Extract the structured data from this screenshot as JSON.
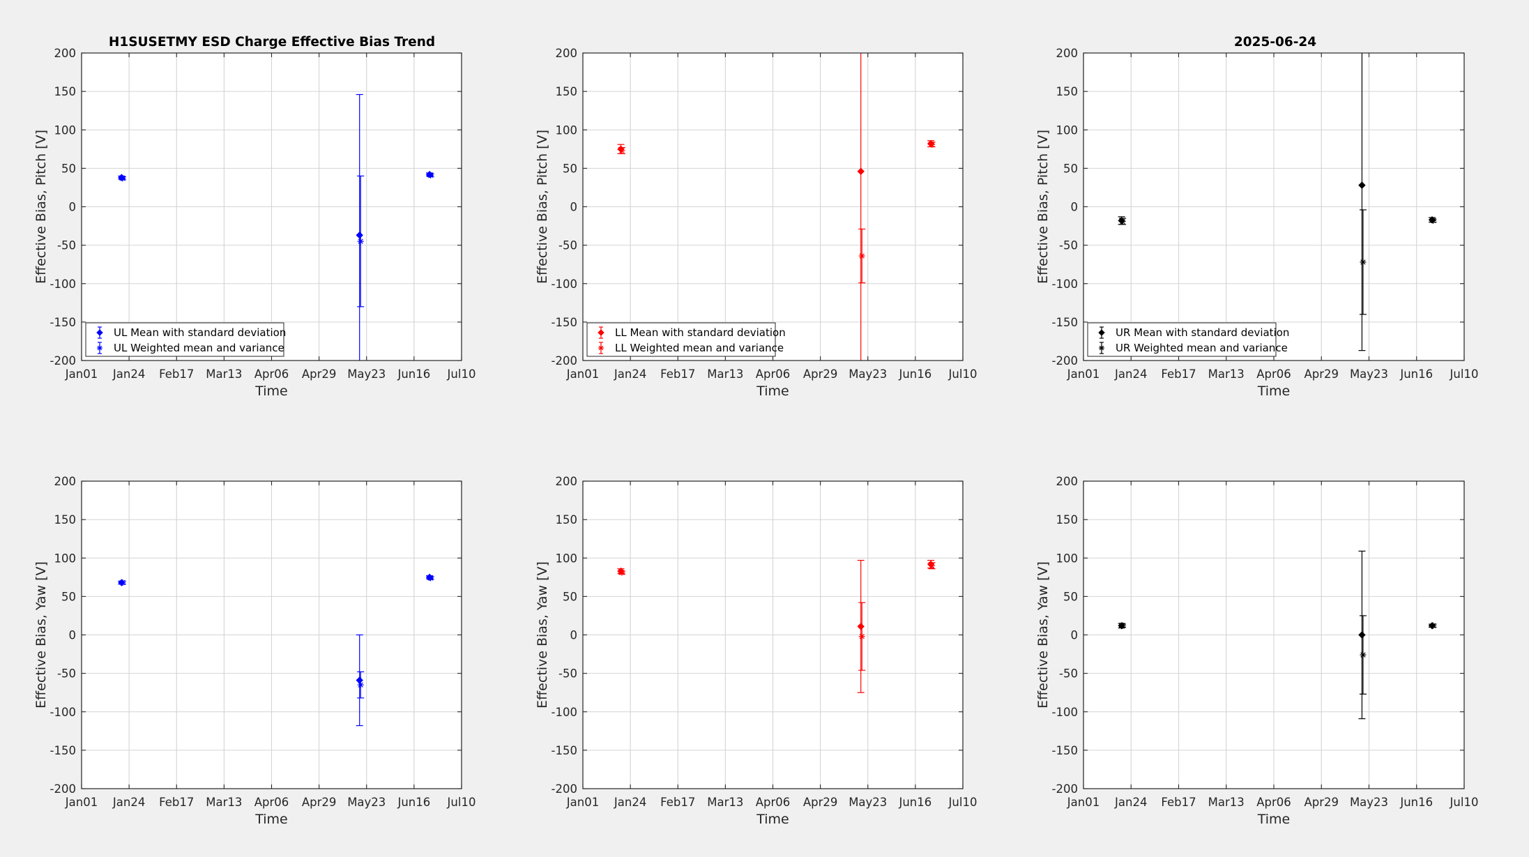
{
  "figure": {
    "title_left": "H1SUSETMY ESD Charge Effective Bias Trend",
    "title_right": "2025-06-24"
  },
  "chart_data": [
    {
      "type": "scatter",
      "quadrant": "UL",
      "color": "#0000ff",
      "title": "H1SUSETMY ESD Charge Effective Bias Trend",
      "xlabel": "Time",
      "ylabel": "Effective Bias, Pitch [V]",
      "xticks": [
        "Jan01",
        "Jan24",
        "Feb17",
        "Mar13",
        "Apr06",
        "Apr29",
        "May23",
        "Jun16",
        "Jul10"
      ],
      "xlim": [
        "2025-01-01",
        "2025-07-10"
      ],
      "ylim": [
        -200,
        200
      ],
      "yticks": [
        -200,
        -150,
        -100,
        -50,
        0,
        50,
        100,
        150,
        200
      ],
      "grid": true,
      "legend": {
        "location": "bottom-left",
        "entries": [
          "UL Mean with standard deviation",
          "UL Weighted mean and variance"
        ]
      },
      "series": [
        {
          "name": "UL Mean with standard deviation",
          "marker": "diamond",
          "points": [
            {
              "x": "2025-01-21",
              "y": 38,
              "err": 2
            },
            {
              "x": "2025-05-20",
              "y": -37,
              "err": 183
            },
            {
              "x": "2025-06-24",
              "y": 42,
              "err": 2
            }
          ]
        },
        {
          "name": "UL Weighted mean and variance",
          "marker": "star",
          "points": [
            {
              "x": "2025-01-21",
              "y": 37,
              "err": 2
            },
            {
              "x": "2025-05-20",
              "y": -45,
              "err": 85
            },
            {
              "x": "2025-06-24",
              "y": 41,
              "err": 2
            }
          ]
        }
      ]
    },
    {
      "type": "scatter",
      "quadrant": "LL",
      "color": "#ff0000",
      "xlabel": "Time",
      "ylabel": "Effective Bias, Pitch [V]",
      "xticks": [
        "Jan01",
        "Jan24",
        "Feb17",
        "Mar13",
        "Apr06",
        "Apr29",
        "May23",
        "Jun16",
        "Jul10"
      ],
      "xlim": [
        "2025-01-01",
        "2025-07-10"
      ],
      "ylim": [
        -200,
        200
      ],
      "yticks": [
        -200,
        -150,
        -100,
        -50,
        0,
        50,
        100,
        150,
        200
      ],
      "grid": true,
      "legend": {
        "location": "bottom-left",
        "entries": [
          "LL Mean with standard deviation",
          "LL Weighted mean and variance"
        ]
      },
      "series": [
        {
          "name": "LL Mean with standard deviation",
          "marker": "diamond",
          "points": [
            {
              "x": "2025-01-20",
              "y": 75,
              "err": 6
            },
            {
              "x": "2025-05-20",
              "y": 46,
              "err": 300
            },
            {
              "x": "2025-06-24",
              "y": 82,
              "err": 4
            }
          ]
        },
        {
          "name": "LL Weighted mean and variance",
          "marker": "star",
          "points": [
            {
              "x": "2025-01-20",
              "y": 73,
              "err": 4
            },
            {
              "x": "2025-05-20",
              "y": -64,
              "err": 35
            },
            {
              "x": "2025-06-24",
              "y": 81,
              "err": 3
            }
          ]
        }
      ]
    },
    {
      "type": "scatter",
      "quadrant": "UR",
      "color": "#000000",
      "title": "2025-06-24",
      "xlabel": "Time",
      "ylabel": "Effective Bias, Pitch [V]",
      "xticks": [
        "Jan01",
        "Jan24",
        "Feb17",
        "Mar13",
        "Apr06",
        "Apr29",
        "May23",
        "Jun16",
        "Jul10"
      ],
      "xlim": [
        "2025-01-01",
        "2025-07-10"
      ],
      "ylim": [
        -200,
        200
      ],
      "yticks": [
        -200,
        -150,
        -100,
        -50,
        0,
        50,
        100,
        150,
        200
      ],
      "grid": true,
      "legend": {
        "location": "bottom-left",
        "entries": [
          "UR Mean with standard deviation",
          "UR Weighted mean and variance"
        ]
      },
      "series": [
        {
          "name": "UR Mean with standard deviation",
          "marker": "diamond",
          "points": [
            {
              "x": "2025-01-20",
              "y": -18,
              "err": 5
            },
            {
              "x": "2025-05-20",
              "y": 28,
              "err": 215
            },
            {
              "x": "2025-06-24",
              "y": -17,
              "err": 3
            }
          ]
        },
        {
          "name": "UR Weighted mean and variance",
          "marker": "star",
          "points": [
            {
              "x": "2025-01-20",
              "y": -19,
              "err": 4
            },
            {
              "x": "2025-05-20",
              "y": -72,
              "err": 68
            },
            {
              "x": "2025-06-24",
              "y": -18,
              "err": 2
            }
          ]
        }
      ]
    },
    {
      "type": "scatter",
      "quadrant": "UL",
      "color": "#0000ff",
      "xlabel": "Time",
      "ylabel": "Effective Bias, Yaw [V]",
      "xticks": [
        "Jan01",
        "Jan24",
        "Feb17",
        "Mar13",
        "Apr06",
        "Apr29",
        "May23",
        "Jun16",
        "Jul10"
      ],
      "xlim": [
        "2025-01-01",
        "2025-07-10"
      ],
      "ylim": [
        -200,
        200
      ],
      "yticks": [
        -200,
        -150,
        -100,
        -50,
        0,
        50,
        100,
        150,
        200
      ],
      "grid": true,
      "series": [
        {
          "name": "UL Mean with standard deviation",
          "marker": "diamond",
          "points": [
            {
              "x": "2025-01-21",
              "y": 68,
              "err": 2
            },
            {
              "x": "2025-05-20",
              "y": -59,
              "err": 59
            },
            {
              "x": "2025-06-24",
              "y": 75,
              "err": 2
            }
          ]
        },
        {
          "name": "UL Weighted mean and variance",
          "marker": "star",
          "points": [
            {
              "x": "2025-01-21",
              "y": 68,
              "err": 2
            },
            {
              "x": "2025-05-20",
              "y": -65,
              "err": 17
            },
            {
              "x": "2025-06-24",
              "y": 74,
              "err": 2
            }
          ]
        }
      ]
    },
    {
      "type": "scatter",
      "quadrant": "LL",
      "color": "#ff0000",
      "xlabel": "Time",
      "ylabel": "Effective Bias, Yaw [V]",
      "xticks": [
        "Jan01",
        "Jan24",
        "Feb17",
        "Mar13",
        "Apr06",
        "Apr29",
        "May23",
        "Jun16",
        "Jul10"
      ],
      "xlim": [
        "2025-01-01",
        "2025-07-10"
      ],
      "ylim": [
        -200,
        200
      ],
      "yticks": [
        -200,
        -150,
        -100,
        -50,
        0,
        50,
        100,
        150,
        200
      ],
      "grid": true,
      "series": [
        {
          "name": "LL Mean with standard deviation",
          "marker": "diamond",
          "points": [
            {
              "x": "2025-01-20",
              "y": 83,
              "err": 3
            },
            {
              "x": "2025-05-20",
              "y": 11,
              "err": 86
            },
            {
              "x": "2025-06-24",
              "y": 92,
              "err": 5
            }
          ]
        },
        {
          "name": "LL Weighted mean and variance",
          "marker": "star",
          "points": [
            {
              "x": "2025-01-20",
              "y": 81,
              "err": 2
            },
            {
              "x": "2025-05-20",
              "y": -2,
              "err": 44
            },
            {
              "x": "2025-06-24",
              "y": 90,
              "err": 4
            }
          ]
        }
      ]
    },
    {
      "type": "scatter",
      "quadrant": "UR",
      "color": "#000000",
      "xlabel": "Time",
      "ylabel": "Effective Bias, Yaw [V]",
      "xticks": [
        "Jan01",
        "Jan24",
        "Feb17",
        "Mar13",
        "Apr06",
        "Apr29",
        "May23",
        "Jun16",
        "Jul10"
      ],
      "xlim": [
        "2025-01-01",
        "2025-07-10"
      ],
      "ylim": [
        -200,
        200
      ],
      "yticks": [
        -200,
        -150,
        -100,
        -50,
        0,
        50,
        100,
        150,
        200
      ],
      "grid": true,
      "series": [
        {
          "name": "UR Mean with standard deviation",
          "marker": "diamond",
          "points": [
            {
              "x": "2025-01-20",
              "y": 12,
              "err": 3
            },
            {
              "x": "2025-05-20",
              "y": 0,
              "err": 109
            },
            {
              "x": "2025-06-24",
              "y": 12,
              "err": 2
            }
          ]
        },
        {
          "name": "UR Weighted mean and variance",
          "marker": "star",
          "points": [
            {
              "x": "2025-01-20",
              "y": 12,
              "err": 2
            },
            {
              "x": "2025-05-20",
              "y": -26,
              "err": 51
            },
            {
              "x": "2025-06-24",
              "y": 12,
              "err": 2
            }
          ]
        }
      ]
    }
  ]
}
